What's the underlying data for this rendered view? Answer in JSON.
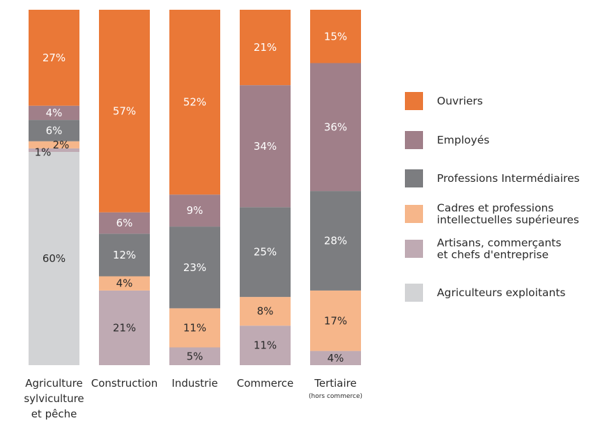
{
  "chart_data": {
    "type": "bar",
    "stacked": true,
    "normalized": true,
    "categories": [
      {
        "lines": [
          "Agriculture",
          "sylviculture",
          "et pêche"
        ],
        "sub": ""
      },
      {
        "lines": [
          "Construction"
        ],
        "sub": ""
      },
      {
        "lines": [
          "Industrie"
        ],
        "sub": ""
      },
      {
        "lines": [
          "Commerce"
        ],
        "sub": ""
      },
      {
        "lines": [
          "Tertiaire"
        ],
        "sub": "(hors commerce)"
      }
    ],
    "series": [
      {
        "name": "Agriculteurs exploitants",
        "color": "#d2d3d5",
        "values": [
          60,
          0,
          0,
          0,
          0
        ],
        "labels": [
          "60%",
          "",
          "",
          "",
          ""
        ]
      },
      {
        "name": "Artisans, commerçants\net chefs d'entreprise",
        "color": "#bfaab3",
        "values": [
          1,
          21,
          5,
          11,
          4
        ],
        "labels": [
          "1%",
          "21%",
          "5%",
          "11%",
          "4%"
        ]
      },
      {
        "name": "Cadres et professions\nintellectuelles supérieures",
        "color": "#f6b68a",
        "values": [
          2,
          4,
          11,
          8,
          17
        ],
        "labels": [
          "2%",
          "4%",
          "11%",
          "8%",
          "17%"
        ]
      },
      {
        "name": "Professions Intermédiaires",
        "color": "#7c7d80",
        "values": [
          6,
          12,
          23,
          25,
          28
        ],
        "labels": [
          "6%",
          "12%",
          "23%",
          "25%",
          "28%"
        ]
      },
      {
        "name": "Employés",
        "color": "#a07f89",
        "values": [
          4,
          6,
          9,
          34,
          36
        ],
        "labels": [
          "4%",
          "6%",
          "9%",
          "34%",
          "36%"
        ]
      },
      {
        "name": "Ouvriers",
        "color": "#ea7837",
        "values": [
          27,
          57,
          52,
          21,
          15
        ],
        "labels": [
          "27%",
          "57%",
          "52%",
          "21%",
          "15%"
        ]
      }
    ],
    "legend_order": [
      "Ouvriers",
      "Employés",
      "Professions Intermédiaires",
      "Cadres et professions\nintellectuelles supérieures",
      "Artisans, commerçants\net chefs d'entreprise",
      "Agriculteurs exploitants"
    ],
    "legend_position": "right",
    "grid": false
  }
}
